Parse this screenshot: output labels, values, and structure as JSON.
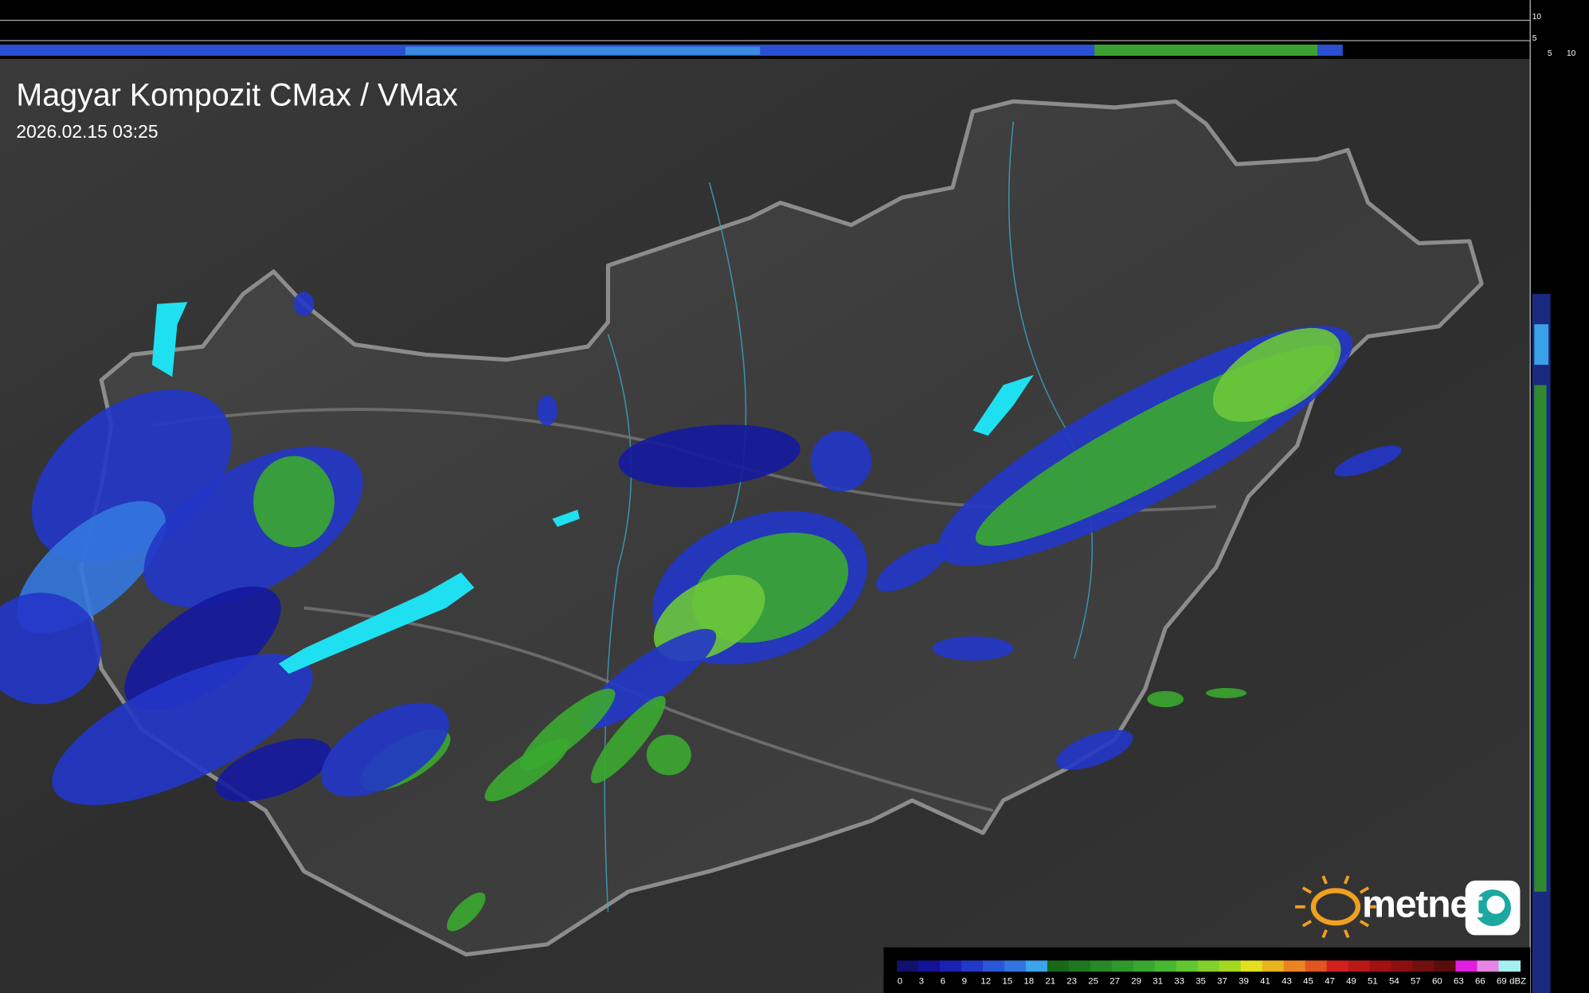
{
  "header": {
    "title": "Magyar Kompozit CMax / VMax",
    "timestamp": "2026.02.15 03:25"
  },
  "side_axis": {
    "vertical_ticks": [
      "10",
      "5"
    ],
    "horizontal_ticks": [
      "5",
      "10"
    ]
  },
  "legend": {
    "items": [
      {
        "label": "0",
        "color": "#10106e"
      },
      {
        "label": "3",
        "color": "#121296"
      },
      {
        "label": "6",
        "color": "#1a22b4"
      },
      {
        "label": "9",
        "color": "#2238c8"
      },
      {
        "label": "12",
        "color": "#2a56d8"
      },
      {
        "label": "15",
        "color": "#3274e0"
      },
      {
        "label": "18",
        "color": "#3ca4ea"
      },
      {
        "label": "21",
        "color": "#186818"
      },
      {
        "label": "23",
        "color": "#1f781f"
      },
      {
        "label": "25",
        "color": "#268826"
      },
      {
        "label": "27",
        "color": "#2e982c"
      },
      {
        "label": "29",
        "color": "#38a830"
      },
      {
        "label": "31",
        "color": "#48b830"
      },
      {
        "label": "33",
        "color": "#62c630"
      },
      {
        "label": "35",
        "color": "#82d02c"
      },
      {
        "label": "37",
        "color": "#a4d820"
      },
      {
        "label": "39",
        "color": "#e2e020"
      },
      {
        "label": "41",
        "color": "#eab420"
      },
      {
        "label": "43",
        "color": "#ea8420"
      },
      {
        "label": "45",
        "color": "#e25420"
      },
      {
        "label": "47",
        "color": "#d22020"
      },
      {
        "label": "49",
        "color": "#ba1818"
      },
      {
        "label": "51",
        "color": "#a21010"
      },
      {
        "label": "54",
        "color": "#8a1010"
      },
      {
        "label": "57",
        "color": "#721010"
      },
      {
        "label": "60",
        "color": "#5a0c0c"
      },
      {
        "label": "63",
        "color": "#e020e0"
      },
      {
        "label": "66",
        "color": "#e884e4"
      },
      {
        "label": "69",
        "color": "#a4f0f0"
      }
    ],
    "unit": "dBZ"
  },
  "logo": {
    "text": "metnet"
  }
}
